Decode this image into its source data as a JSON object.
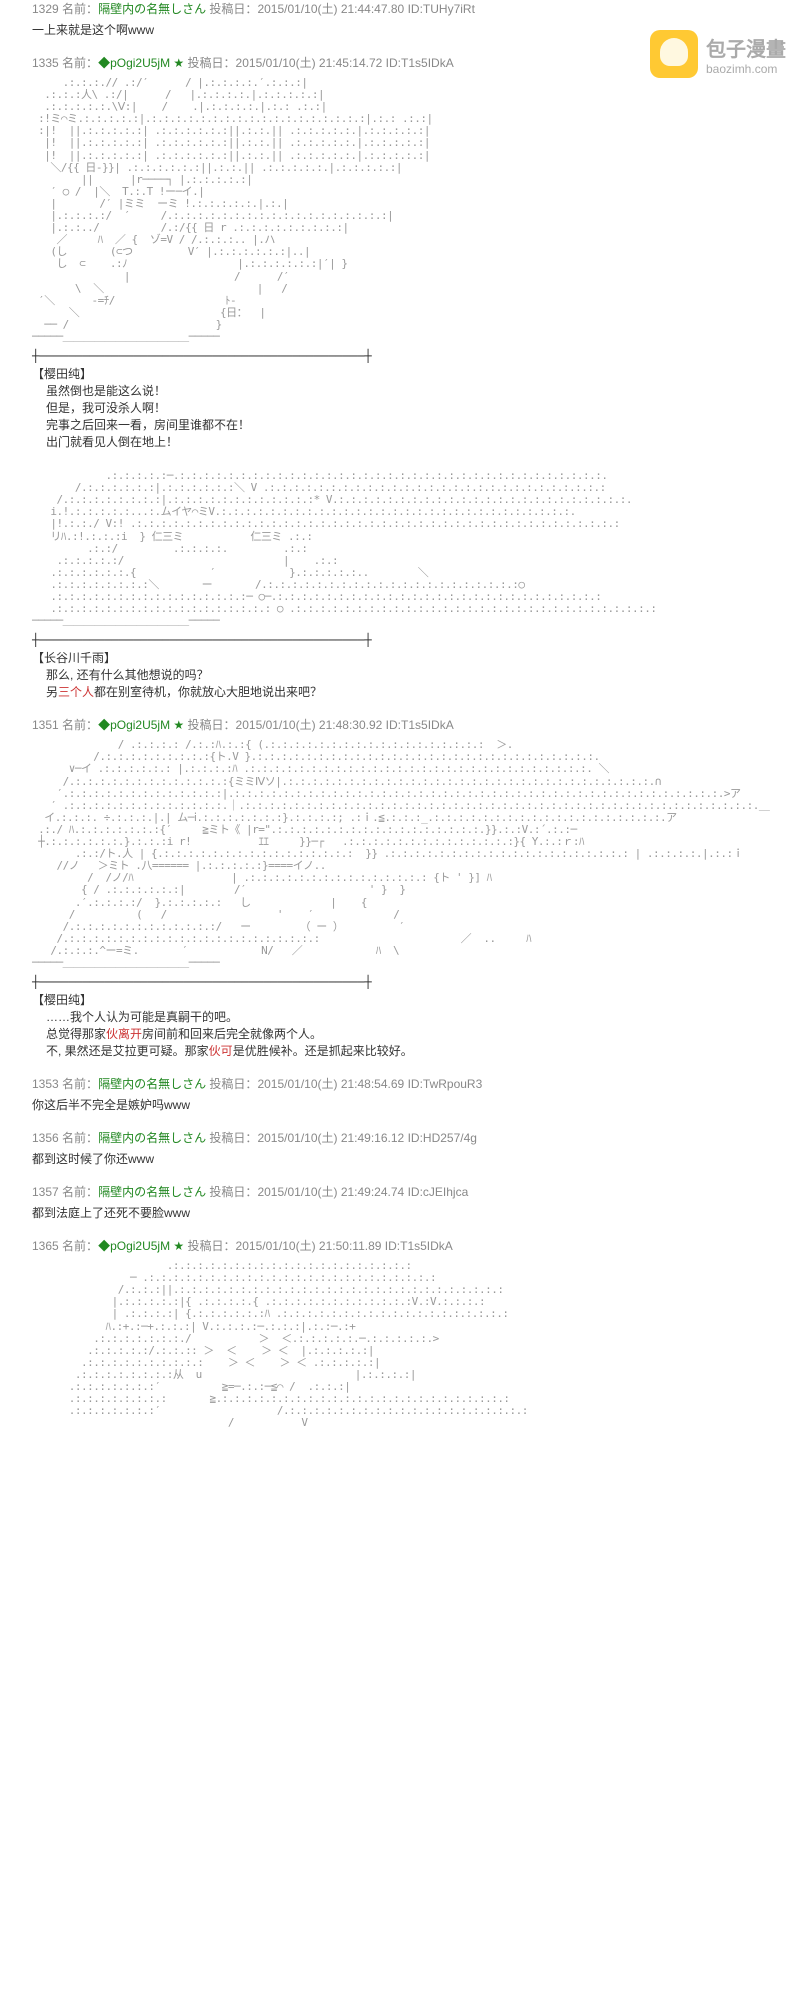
{
  "logo": {
    "cn": "包子漫畫",
    "en": "baozimh.com"
  },
  "posts": [
    {
      "num": "1329",
      "name_prefix": "名前：",
      "name": "隔壁内の名無しさん",
      "date_prefix": "投稿日：",
      "date": "2015/01/10(土) 21:44:47.80",
      "id_prefix": "ID:",
      "id": "TUHy7iRt",
      "body": "一上来就是这个啊www"
    },
    {
      "num": "1335",
      "name_prefix": "名前：",
      "name": "◆pOgi2U5jM ★",
      "date_prefix": "投稿日：",
      "date": "2015/01/10(土) 21:45:14.72",
      "id_prefix": "ID:",
      "id": "T1s5IDkA",
      "aa1": true,
      "dialogue1_name": "【樱田纯】",
      "dialogue1_lines": [
        "虽然倒也是能这么说！",
        "但是，我可没杀人啊！",
        "完事之后回来一看，房间里谁都不在！",
        "出门就看见人倒在地上！"
      ],
      "aa2": true,
      "dialogue2_name": "【长谷川千雨】",
      "dialogue2_lines": [
        "那么, 还有什么其他想说的吗？"
      ],
      "dialogue2_special": "另三个人都在别室待机，你就放心大胆地说出来吧？",
      "dialogue2_highlight": "三个人"
    },
    {
      "num": "1351",
      "name_prefix": "名前：",
      "name": "◆pOgi2U5jM ★",
      "date_prefix": "投稿日：",
      "date": "2015/01/10(土) 21:48:30.92",
      "id_prefix": "ID:",
      "id": "T1s5IDkA",
      "aa3": true,
      "dialogue3_name": "【樱田纯】",
      "dialogue3_lines": [
        "……我个人认为可能是真嗣干的吧。"
      ],
      "dialogue3_special1_pre": "总觉得那家",
      "dialogue3_special1_hl": "伙离开",
      "dialogue3_special1_post": "房间前和回来后完全就像两个人。",
      "dialogue3_special2_pre": "不, 果然还是艾拉更可疑。那家",
      "dialogue3_special2_hl": "伙可",
      "dialogue3_special2_post": "是优胜候补。还是抓起来比较好。"
    },
    {
      "num": "1353",
      "name_prefix": "名前：",
      "name": "隔壁内の名無しさん",
      "date_prefix": "投稿日：",
      "date": "2015/01/10(土) 21:48:54.69",
      "id_prefix": "ID:",
      "id": "TwRpouR3",
      "body": "你这后半不完全是嫉妒吗www"
    },
    {
      "num": "1356",
      "name_prefix": "名前：",
      "name": "隔壁内の名無しさん",
      "date_prefix": "投稿日：",
      "date": "2015/01/10(土) 21:49:16.12",
      "id_prefix": "ID:",
      "id": "HD257/4g",
      "body": "都到这时候了你还www"
    },
    {
      "num": "1357",
      "name_prefix": "名前：",
      "name": "隔壁内の名無しさん",
      "date_prefix": "投稿日：",
      "date": "2015/01/10(土) 21:49:24.74",
      "id_prefix": "ID:",
      "id": "cJEIhjca",
      "body": "都到法庭上了还死不要脸www"
    },
    {
      "num": "1365",
      "name_prefix": "名前：",
      "name": "◆pOgi2U5jM ★",
      "date_prefix": "投稿日：",
      "date": "2015/01/10(土) 21:50:11.89",
      "id_prefix": "ID:",
      "id": "T1s5IDkA",
      "aa4": true
    }
  ],
  "cross": "┼─────────────────────────────────────────────┼"
}
